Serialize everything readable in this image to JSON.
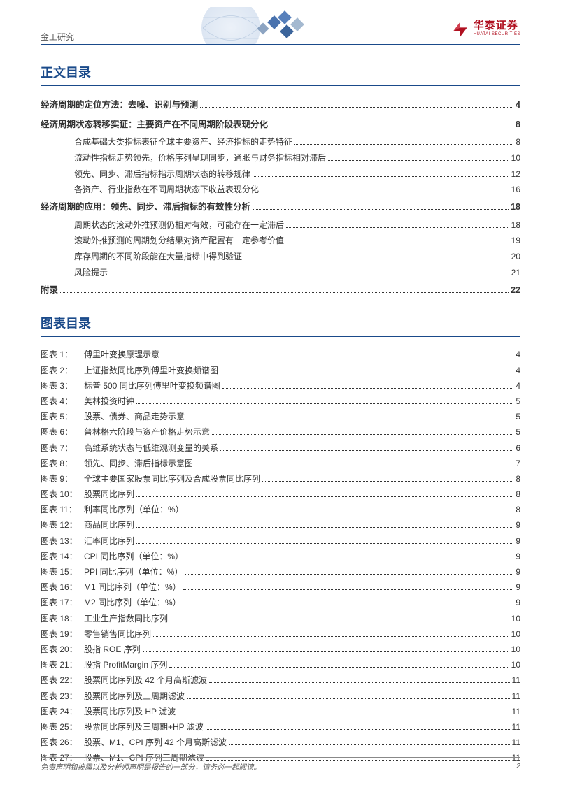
{
  "header": {
    "category": "金工研究",
    "logo_cn": "华泰证券",
    "logo_en": "HUATAI SECURITIES"
  },
  "sections": {
    "toc_title": "正文目录",
    "figures_title": "图表目录"
  },
  "toc": [
    {
      "label": "经济周期的定位方法：去噪、识别与预测",
      "page": "4",
      "bold": true,
      "indent": 0
    },
    {
      "label": "经济周期状态转移实证：主要资产在不同周期阶段表现分化",
      "page": "8",
      "bold": true,
      "indent": 0
    },
    {
      "label": "合成基础大类指标表征全球主要资产、经济指标的走势特征",
      "page": "8",
      "bold": false,
      "indent": 1
    },
    {
      "label": "流动性指标走势领先，价格序列呈现同步，通胀与财务指标相对滞后",
      "page": "10",
      "bold": false,
      "indent": 1
    },
    {
      "label": "领先、同步、滞后指标指示周期状态的转移规律",
      "page": "12",
      "bold": false,
      "indent": 1
    },
    {
      "label": "各资产、行业指数在不同周期状态下收益表现分化",
      "page": "16",
      "bold": false,
      "indent": 1
    },
    {
      "label": "经济周期的应用：领先、同步、滞后指标的有效性分析",
      "page": "18",
      "bold": true,
      "indent": 0
    },
    {
      "label": "周期状态的滚动外推预测仍相对有效，可能存在一定滞后",
      "page": "18",
      "bold": false,
      "indent": 1
    },
    {
      "label": "滚动外推预测的周期划分结果对资产配置有一定参考价值",
      "page": "19",
      "bold": false,
      "indent": 1
    },
    {
      "label": "库存周期的不同阶段能在大量指标中得到验证",
      "page": "20",
      "bold": false,
      "indent": 1
    },
    {
      "label": "风险提示",
      "page": "21",
      "bold": false,
      "indent": 1
    },
    {
      "label": "附录",
      "page": "22",
      "bold": true,
      "indent": 0
    }
  ],
  "figures": [
    {
      "n": "1",
      "title": "傅里叶变换原理示意",
      "page": "4"
    },
    {
      "n": "2",
      "title": "上证指数同比序列傅里叶变换频谱图",
      "page": "4"
    },
    {
      "n": "3",
      "title": "标普 500 同比序列傅里叶变换频谱图",
      "page": "4"
    },
    {
      "n": "4",
      "title": "美林投资时钟",
      "page": "5"
    },
    {
      "n": "5",
      "title": "股票、债券、商品走势示意",
      "page": "5"
    },
    {
      "n": "6",
      "title": "普林格六阶段与资产价格走势示意",
      "page": "5"
    },
    {
      "n": "7",
      "title": "高维系统状态与低维观测变量的关系",
      "page": "6"
    },
    {
      "n": "8",
      "title": "领先、同步、滞后指标示意图",
      "page": "7"
    },
    {
      "n": "9",
      "title": "全球主要国家股票同比序列及合成股票同比序列",
      "page": "8"
    },
    {
      "n": "10",
      "title": "股票同比序列",
      "page": "8"
    },
    {
      "n": "11",
      "title": "利率同比序列（单位：%）",
      "page": "8"
    },
    {
      "n": "12",
      "title": "商品同比序列",
      "page": "9"
    },
    {
      "n": "13",
      "title": "汇率同比序列",
      "page": "9"
    },
    {
      "n": "14",
      "title": "CPI 同比序列（单位：%）",
      "page": "9"
    },
    {
      "n": "15",
      "title": "PPI 同比序列（单位：%）",
      "page": "9"
    },
    {
      "n": "16",
      "title": "M1 同比序列（单位：%）",
      "page": "9"
    },
    {
      "n": "17",
      "title": "M2 同比序列（单位：%）",
      "page": "9"
    },
    {
      "n": "18",
      "title": "工业生产指数同比序列",
      "page": "10"
    },
    {
      "n": "19",
      "title": "零售销售同比序列",
      "page": "10"
    },
    {
      "n": "20",
      "title": "股指 ROE 序列",
      "page": "10"
    },
    {
      "n": "21",
      "title": "股指 ProfitMargin 序列",
      "page": "10"
    },
    {
      "n": "22",
      "title": "股票同比序列及 42 个月高斯滤波",
      "page": "11"
    },
    {
      "n": "23",
      "title": "股票同比序列及三周期滤波",
      "page": "11"
    },
    {
      "n": "24",
      "title": "股票同比序列及 HP 滤波",
      "page": "11"
    },
    {
      "n": "25",
      "title": "股票同比序列及三周期+HP 滤波",
      "page": "11"
    },
    {
      "n": "26",
      "title": "股票、M1、CPI 序列 42 个月高斯滤波",
      "page": "11"
    },
    {
      "n": "27",
      "title": "股票、M1、CPI 序列三周期滤波",
      "page": "11"
    }
  ],
  "figure_prefix": "图表",
  "figure_sep": "：",
  "footer": {
    "disclaimer": "免责声明和披露以及分析师声明是报告的一部分，请务必一起阅读。",
    "page_number": "2"
  },
  "colors": {
    "brand_blue": "#1a4a8a",
    "brand_red": "#b01020",
    "text": "#333333",
    "muted": "#555555"
  }
}
